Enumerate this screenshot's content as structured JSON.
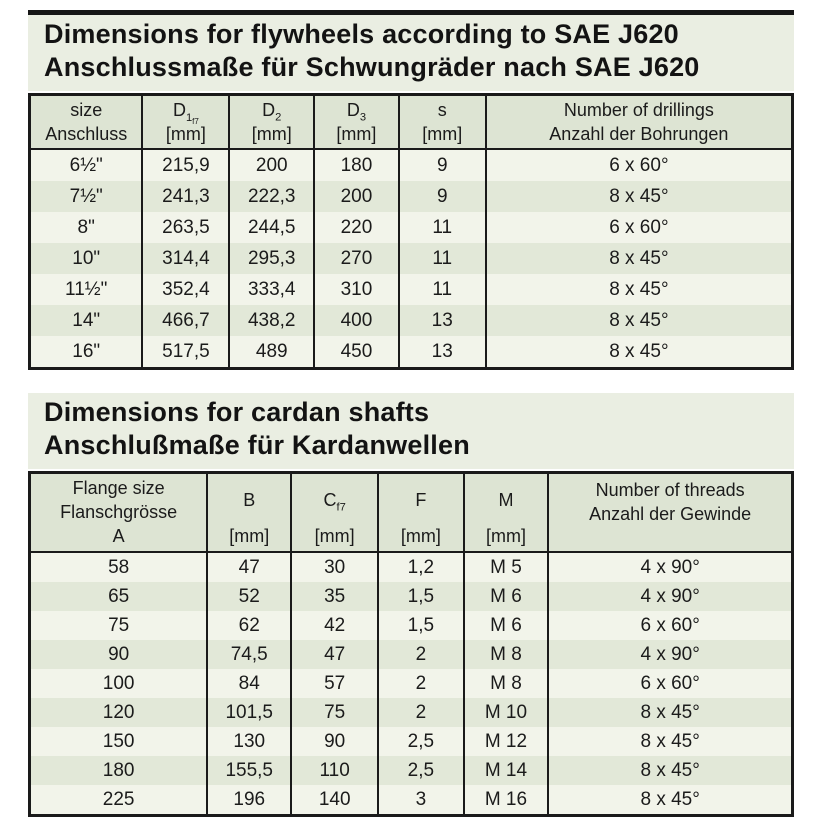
{
  "colors": {
    "page_bg": "#ffffff",
    "title_bg": "#eaeee2",
    "header_bg": "#dde4d3",
    "row_light": "#f2f4ea",
    "row_green": "#e2e8d8",
    "border": "#1a1a1a",
    "text": "#161616"
  },
  "flywheel": {
    "title_line1": "Dimensions for flywheels according to SAE J620",
    "title_line2": "Anschlussmaße für Schwungräder nach SAE J620",
    "header": {
      "size_line1": "size",
      "size_line2": "Anschluss",
      "d1_base": "D",
      "d1_sub": "1",
      "d1_subsub": "f7",
      "d1_unit": "[mm]",
      "d2_base": "D",
      "d2_sub": "2",
      "d2_unit": "[mm]",
      "d3_base": "D",
      "d3_sub": "3",
      "d3_unit": "[mm]",
      "s_base": "s",
      "s_unit": "[mm]",
      "drill_line1": "Number of drillings",
      "drill_line2": "Anzahl der Bohrungen"
    },
    "rows": [
      [
        "6½\"",
        "215,9",
        "200",
        "180",
        "9",
        "6 x 60°"
      ],
      [
        "7½\"",
        "241,3",
        "222,3",
        "200",
        "9",
        "8 x 45°"
      ],
      [
        "8\"",
        "263,5",
        "244,5",
        "220",
        "11",
        "6 x 60°"
      ],
      [
        "10\"",
        "314,4",
        "295,3",
        "270",
        "11",
        "8 x 45°"
      ],
      [
        "11½\"",
        "352,4",
        "333,4",
        "310",
        "11",
        "8 x 45°"
      ],
      [
        "14\"",
        "466,7",
        "438,2",
        "400",
        "13",
        "8 x 45°"
      ],
      [
        "16\"",
        "517,5",
        "489",
        "450",
        "13",
        "8 x 45°"
      ]
    ]
  },
  "cardan": {
    "title_line1": "Dimensions for cardan shafts",
    "title_line2": "Anschlußmaße für Kardanwellen",
    "header": {
      "flange_line1": "Flange size",
      "flange_line2": "Flanschgrösse",
      "flange_line3": "A",
      "b_base": "B",
      "b_unit": "[mm]",
      "c_base": "C",
      "c_sub": "f7",
      "c_unit": "[mm]",
      "f_base": "F",
      "f_unit": "[mm]",
      "m_base": "M",
      "m_unit": "[mm]",
      "threads_line1": "Number of threads",
      "threads_line2": "Anzahl der Gewinde"
    },
    "rows": [
      [
        "58",
        "47",
        "30",
        "1,2",
        "M 5",
        "4 x 90°"
      ],
      [
        "65",
        "52",
        "35",
        "1,5",
        "M 6",
        "4 x 90°"
      ],
      [
        "75",
        "62",
        "42",
        "1,5",
        "M 6",
        "6 x 60°"
      ],
      [
        "90",
        "74,5",
        "47",
        "2",
        "M 8",
        "4 x 90°"
      ],
      [
        "100",
        "84",
        "57",
        "2",
        "M 8",
        "6 x 60°"
      ],
      [
        "120",
        "101,5",
        "75",
        "2",
        "M 10",
        "8 x 45°"
      ],
      [
        "150",
        "130",
        "90",
        "2,5",
        "M 12",
        "8 x 45°"
      ],
      [
        "180",
        "155,5",
        "110",
        "2,5",
        "M 14",
        "8 x 45°"
      ],
      [
        "225",
        "196",
        "140",
        "3",
        "M 16",
        "8 x 45°"
      ]
    ]
  }
}
